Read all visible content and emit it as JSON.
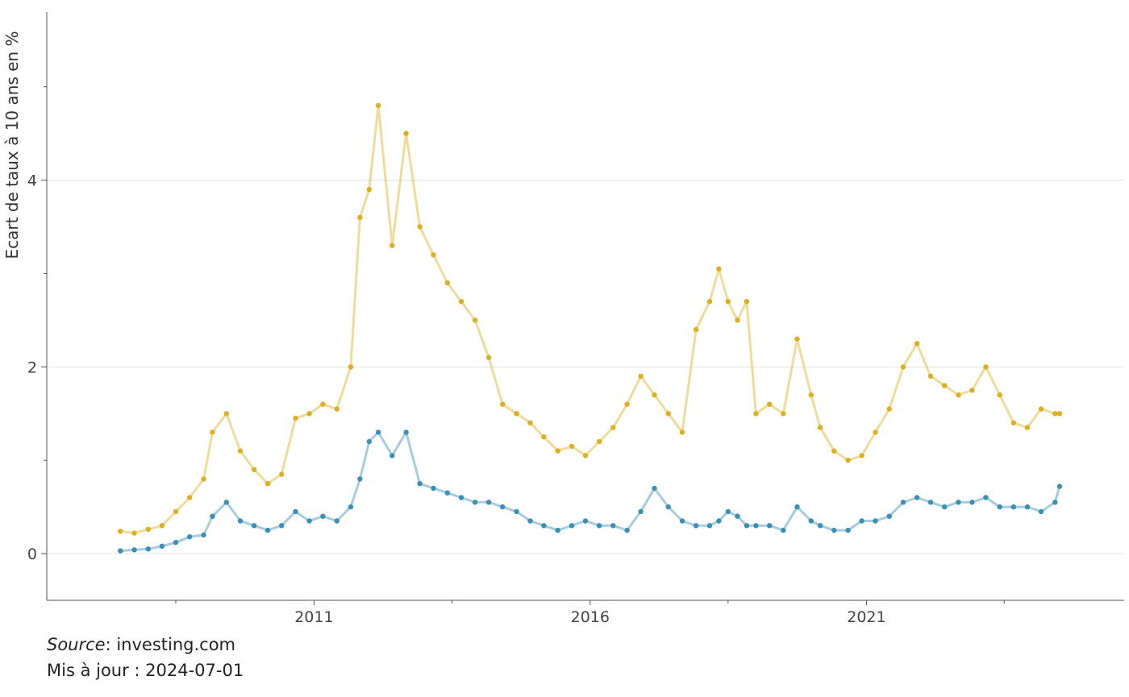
{
  "chart_data": {
    "type": "scatter",
    "title": "",
    "xlabel": "",
    "ylabel": "Ecart de taux à 10 ans en %",
    "x_range": [
      "2006-03-01",
      "2025-09-01"
    ],
    "xticks": [
      "2011",
      "2016",
      "2021"
    ],
    "minor_xticks": [
      "2008-07-01",
      "2013-07-01",
      "2018-07-01",
      "2023-07-01"
    ],
    "ylim": [
      -0.5,
      5.8
    ],
    "yticks": [
      0,
      2,
      4
    ],
    "minor_yticks": [
      1,
      3,
      5
    ],
    "grid": true,
    "legend": "none",
    "series": [
      {
        "color": "#dcb020",
        "x": [
          "2007-07-01",
          "2007-10-01",
          "2008-01-01",
          "2008-04-01",
          "2008-07-01",
          "2008-10-01",
          "2009-01-01",
          "2009-03-01",
          "2009-06-01",
          "2009-09-01",
          "2009-12-01",
          "2010-03-01",
          "2010-06-01",
          "2010-09-01",
          "2010-12-01",
          "2011-03-01",
          "2011-06-01",
          "2011-09-01",
          "2011-11-01",
          "2012-01-01",
          "2012-03-01",
          "2012-06-01",
          "2012-09-01",
          "2012-12-01",
          "2013-03-01",
          "2013-06-01",
          "2013-09-01",
          "2013-12-01",
          "2014-03-01",
          "2014-06-01",
          "2014-09-01",
          "2014-12-01",
          "2015-03-01",
          "2015-06-01",
          "2015-09-01",
          "2015-12-01",
          "2016-03-01",
          "2016-06-01",
          "2016-09-01",
          "2016-12-01",
          "2017-03-01",
          "2017-06-01",
          "2017-09-01",
          "2017-12-01",
          "2018-03-01",
          "2018-05-01",
          "2018-07-01",
          "2018-09-01",
          "2018-11-01",
          "2019-01-01",
          "2019-04-01",
          "2019-07-01",
          "2019-10-01",
          "2020-01-01",
          "2020-03-01",
          "2020-06-01",
          "2020-09-01",
          "2020-12-01",
          "2021-03-01",
          "2021-06-01",
          "2021-09-01",
          "2021-12-01",
          "2022-03-01",
          "2022-06-01",
          "2022-09-01",
          "2022-12-01",
          "2023-03-01",
          "2023-06-01",
          "2023-09-01",
          "2023-12-01",
          "2024-03-01",
          "2024-06-01",
          "2024-07-01"
        ],
        "y": [
          0.24,
          0.22,
          0.26,
          0.3,
          0.45,
          0.6,
          0.8,
          1.3,
          1.5,
          1.1,
          0.9,
          0.75,
          0.85,
          1.45,
          1.5,
          1.6,
          1.55,
          2.0,
          3.6,
          3.9,
          4.8,
          3.3,
          4.5,
          3.5,
          3.2,
          2.9,
          2.7,
          2.5,
          2.1,
          1.6,
          1.5,
          1.4,
          1.25,
          1.1,
          1.15,
          1.05,
          1.2,
          1.35,
          1.6,
          1.9,
          1.7,
          1.5,
          1.3,
          2.4,
          2.7,
          3.05,
          2.7,
          2.5,
          2.7,
          1.5,
          1.6,
          1.5,
          2.3,
          1.7,
          1.35,
          1.1,
          1.0,
          1.05,
          1.3,
          1.55,
          2.0,
          2.25,
          1.9,
          1.8,
          1.7,
          1.75,
          2.0,
          1.7,
          1.4,
          1.35,
          1.55,
          1.5,
          1.5
        ]
      },
      {
        "color": "#3a8fb5",
        "x": [
          "2007-07-01",
          "2007-10-01",
          "2008-01-01",
          "2008-04-01",
          "2008-07-01",
          "2008-10-01",
          "2009-01-01",
          "2009-03-01",
          "2009-06-01",
          "2009-09-01",
          "2009-12-01",
          "2010-03-01",
          "2010-06-01",
          "2010-09-01",
          "2010-12-01",
          "2011-03-01",
          "2011-06-01",
          "2011-09-01",
          "2011-11-01",
          "2012-01-01",
          "2012-03-01",
          "2012-06-01",
          "2012-09-01",
          "2012-12-01",
          "2013-03-01",
          "2013-06-01",
          "2013-09-01",
          "2013-12-01",
          "2014-03-01",
          "2014-06-01",
          "2014-09-01",
          "2014-12-01",
          "2015-03-01",
          "2015-06-01",
          "2015-09-01",
          "2015-12-01",
          "2016-03-01",
          "2016-06-01",
          "2016-09-01",
          "2016-12-01",
          "2017-03-01",
          "2017-06-01",
          "2017-09-01",
          "2017-12-01",
          "2018-03-01",
          "2018-05-01",
          "2018-07-01",
          "2018-09-01",
          "2018-11-01",
          "2019-01-01",
          "2019-04-01",
          "2019-07-01",
          "2019-10-01",
          "2020-01-01",
          "2020-03-01",
          "2020-06-01",
          "2020-09-01",
          "2020-12-01",
          "2021-03-01",
          "2021-06-01",
          "2021-09-01",
          "2021-12-01",
          "2022-03-01",
          "2022-06-01",
          "2022-09-01",
          "2022-12-01",
          "2023-03-01",
          "2023-06-01",
          "2023-09-01",
          "2023-12-01",
          "2024-03-01",
          "2024-06-01",
          "2024-07-01"
        ],
        "y": [
          0.03,
          0.04,
          0.05,
          0.08,
          0.12,
          0.18,
          0.2,
          0.4,
          0.55,
          0.35,
          0.3,
          0.25,
          0.3,
          0.45,
          0.35,
          0.4,
          0.35,
          0.5,
          0.8,
          1.2,
          1.3,
          1.05,
          1.3,
          0.75,
          0.7,
          0.65,
          0.6,
          0.55,
          0.55,
          0.5,
          0.45,
          0.35,
          0.3,
          0.25,
          0.3,
          0.35,
          0.3,
          0.3,
          0.25,
          0.45,
          0.7,
          0.5,
          0.35,
          0.3,
          0.3,
          0.35,
          0.45,
          0.4,
          0.3,
          0.3,
          0.3,
          0.25,
          0.5,
          0.35,
          0.3,
          0.25,
          0.25,
          0.35,
          0.35,
          0.4,
          0.55,
          0.6,
          0.55,
          0.5,
          0.55,
          0.55,
          0.6,
          0.5,
          0.5,
          0.5,
          0.45,
          0.55,
          0.72
        ]
      }
    ]
  },
  "footer": {
    "source_label": "Source",
    "source_value": ": investing.com",
    "updated": "Mis à jour : 2024-07-01"
  }
}
